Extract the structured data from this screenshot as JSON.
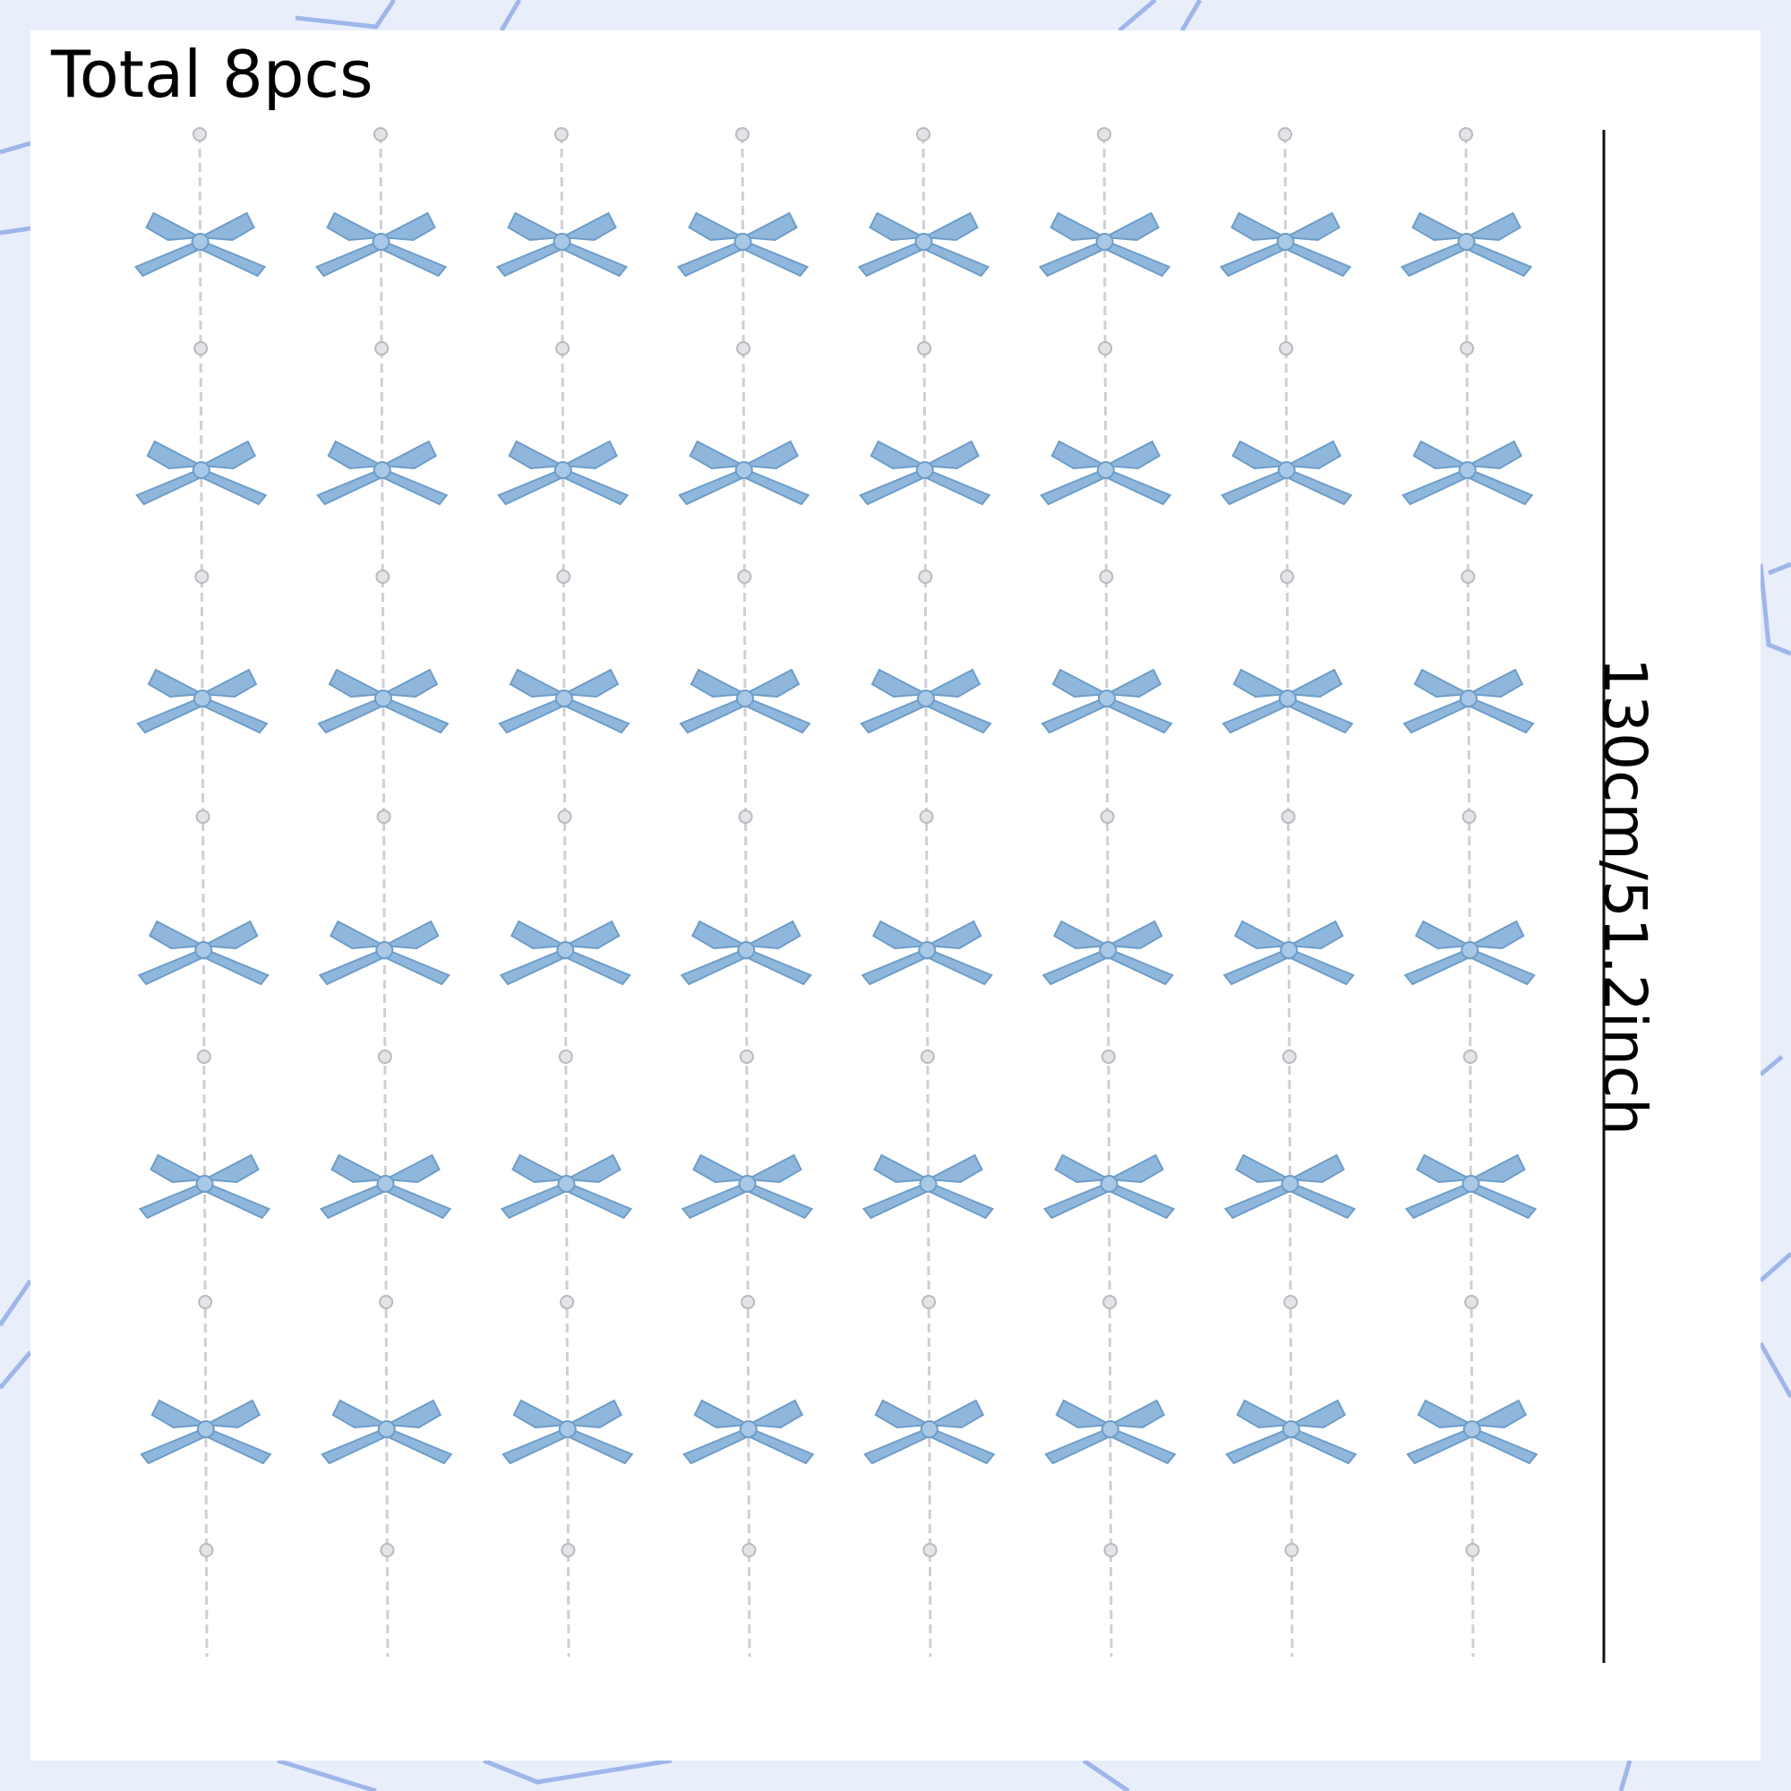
{
  "title": "Total 8pcs",
  "dimension": "130cm/51.2inch"
}
